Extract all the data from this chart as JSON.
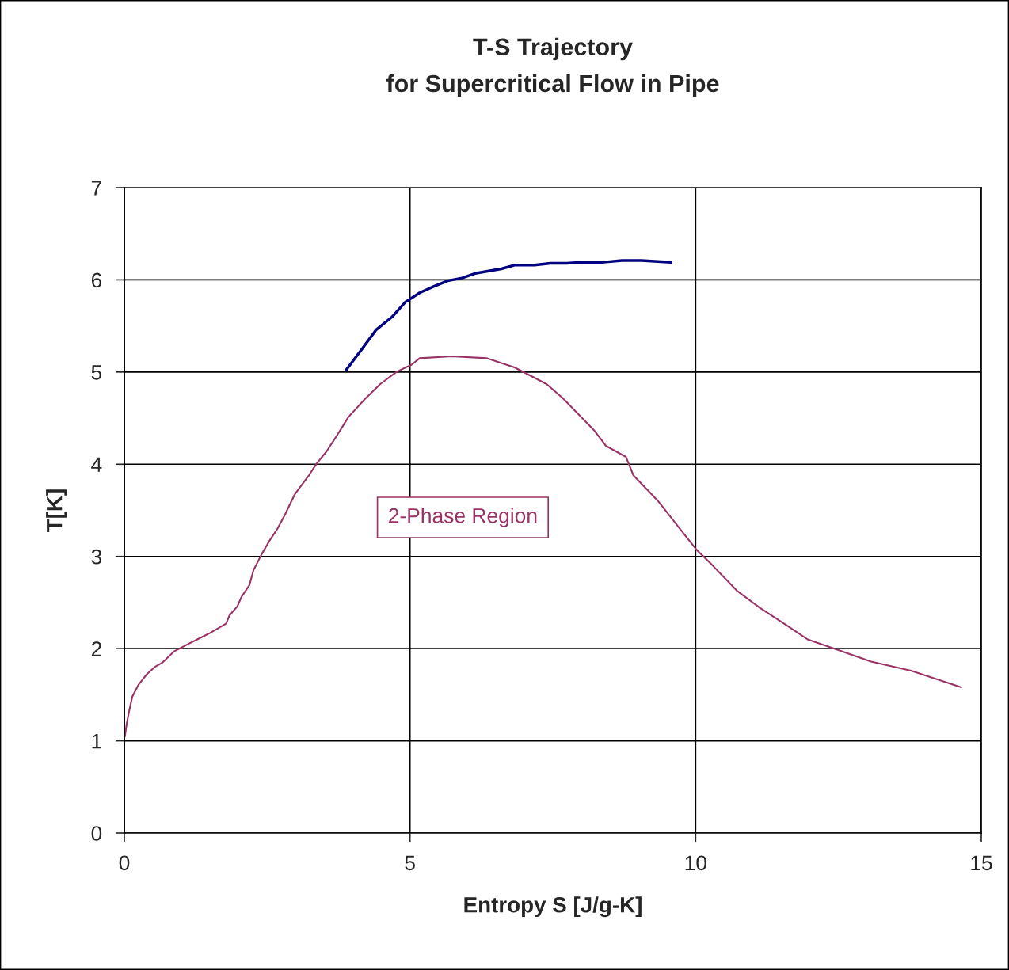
{
  "chart_data": {
    "type": "line",
    "title": "T-S Trajectory\nfor Supercritical Flow in Pipe",
    "xlabel": "Entropy S [J/g-K]",
    "ylabel": "T[K]",
    "xlim": [
      0,
      15
    ],
    "xticks": [
      0,
      5,
      10,
      15
    ],
    "ylim": [
      0,
      7
    ],
    "yticks": [
      0,
      1,
      2,
      3,
      4,
      5,
      6,
      7
    ],
    "grid": true,
    "marker": "none",
    "line_style": "solid",
    "annotations": [
      "2-Phase Region"
    ],
    "series": [
      {
        "color": "#000080",
        "x": [
          3.88,
          4.16,
          4.41,
          4.69,
          4.92,
          5.17,
          5.42,
          5.66,
          5.91,
          6.14,
          6.6,
          6.83,
          7.18,
          7.46,
          7.74,
          8.01,
          8.36,
          8.71,
          9.05,
          9.57
        ],
        "values": [
          5.02,
          5.25,
          5.46,
          5.6,
          5.76,
          5.86,
          5.93,
          5.99,
          6.02,
          6.07,
          6.12,
          6.16,
          6.16,
          6.18,
          6.18,
          6.19,
          6.19,
          6.21,
          6.21,
          6.19
        ]
      },
      {
        "color": "#993366",
        "x": [
          0.01,
          0.04,
          0.08,
          0.14,
          0.25,
          0.39,
          0.53,
          0.67,
          0.87,
          1.15,
          1.5,
          1.78,
          1.84,
          1.98,
          2.05,
          2.19,
          2.26,
          2.4,
          2.54,
          2.68,
          2.81,
          2.98,
          3.23,
          3.37,
          3.54,
          3.72,
          3.92,
          4.2,
          4.48,
          4.76,
          5.03,
          5.17,
          5.73,
          6.35,
          6.83,
          7.39,
          7.67,
          8.22,
          8.43,
          8.78,
          8.91,
          9.33,
          9.75,
          10.02,
          10.3,
          10.72,
          11.13,
          11.55,
          11.96,
          12.52,
          13.07,
          13.77,
          14.65
        ],
        "values": [
          1.05,
          1.18,
          1.31,
          1.48,
          1.61,
          1.72,
          1.8,
          1.85,
          1.97,
          2.06,
          2.17,
          2.27,
          2.36,
          2.46,
          2.56,
          2.69,
          2.85,
          3.02,
          3.17,
          3.3,
          3.45,
          3.67,
          3.88,
          4.01,
          4.14,
          4.31,
          4.51,
          4.7,
          4.87,
          5.0,
          5.08,
          5.15,
          5.17,
          5.15,
          5.05,
          4.87,
          4.72,
          4.37,
          4.2,
          4.08,
          3.88,
          3.61,
          3.28,
          3.07,
          2.9,
          2.63,
          2.44,
          2.27,
          2.1,
          1.98,
          1.86,
          1.76,
          1.58
        ]
      }
    ]
  }
}
